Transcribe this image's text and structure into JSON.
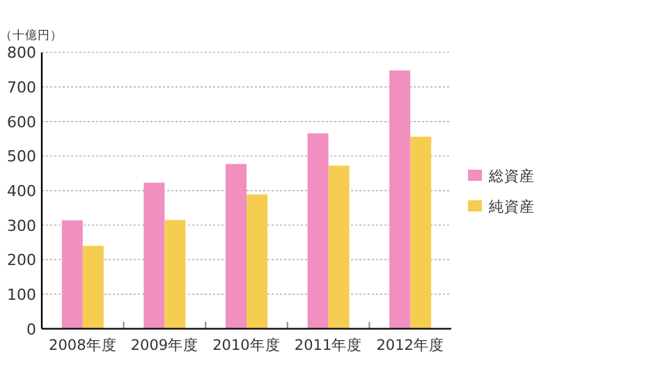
{
  "chart_data": {
    "type": "bar",
    "ylabel": "（十億円）",
    "categories": [
      "2008年度",
      "2009年度",
      "2010年度",
      "2011年度",
      "2012年度"
    ],
    "series": [
      {
        "name": "総資産",
        "color": "#f08fc0",
        "values": [
          314,
          423,
          477,
          566,
          748
        ]
      },
      {
        "name": "純資産",
        "color": "#f5cd50",
        "values": [
          240,
          315,
          389,
          472,
          556
        ]
      }
    ],
    "ylim": [
      0,
      800
    ],
    "yticks": [
      0,
      100,
      200,
      300,
      400,
      500,
      600,
      700,
      800
    ],
    "grid": "y",
    "legend": "right"
  }
}
